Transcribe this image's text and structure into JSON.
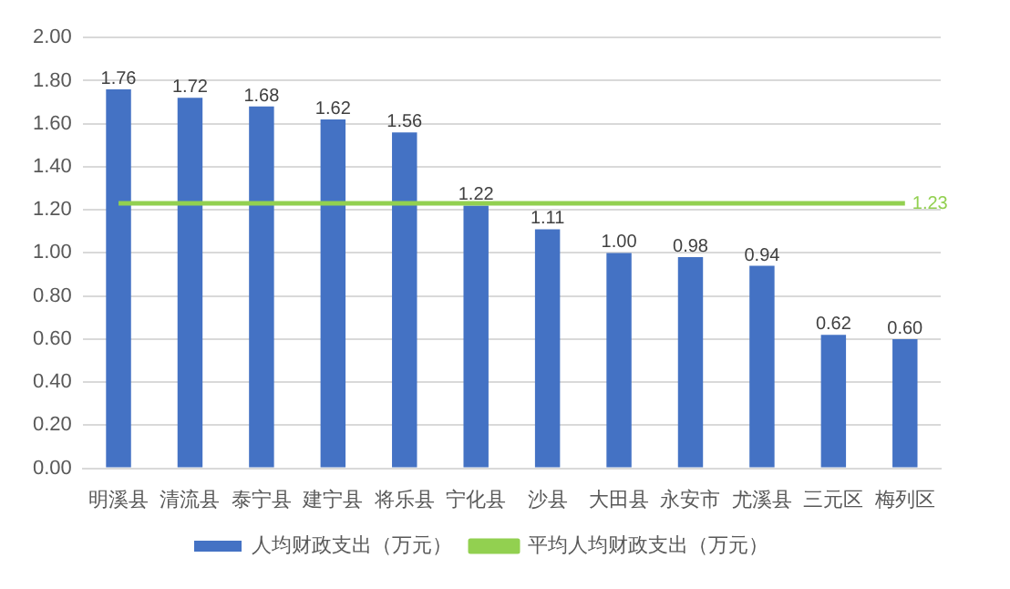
{
  "chart_data": {
    "type": "bar",
    "categories": [
      "明溪县",
      "清流县",
      "泰宁县",
      "建宁县",
      "将乐县",
      "宁化县",
      "沙县",
      "大田县",
      "永安市",
      "尤溪县",
      "三元区",
      "梅列区"
    ],
    "series": [
      {
        "name": "人均财政支出（万元）",
        "color": "#4472c4",
        "values": [
          1.76,
          1.72,
          1.68,
          1.62,
          1.56,
          1.22,
          1.11,
          1.0,
          0.98,
          0.94,
          0.62,
          0.6
        ],
        "value_labels": [
          "1.76",
          "1.72",
          "1.68",
          "1.62",
          "1.56",
          "1.22",
          "1.11",
          "1.00",
          "0.98",
          "0.94",
          "0.62",
          "0.60"
        ]
      },
      {
        "type": "line",
        "name": "平均人均财政支出（万元）",
        "color": "#92d050",
        "values": [
          1.23,
          1.23,
          1.23,
          1.23,
          1.23,
          1.23,
          1.23,
          1.23,
          1.23,
          1.23,
          1.23,
          1.23
        ],
        "value_labels": [
          null,
          null,
          null,
          null,
          null,
          null,
          null,
          null,
          null,
          null,
          null,
          "1.23"
        ]
      }
    ],
    "ylim": [
      0,
      2
    ],
    "yticks": [
      {
        "value": 0,
        "label": "0.00"
      },
      {
        "value": 0.2,
        "label": "0.20"
      },
      {
        "value": 0.4,
        "label": "0.40"
      },
      {
        "value": 0.6,
        "label": "0.60"
      },
      {
        "value": 0.8,
        "label": "0.80"
      },
      {
        "value": 1,
        "label": "1.00"
      },
      {
        "value": 1.2,
        "label": "1.20"
      },
      {
        "value": 1.4,
        "label": "1.40"
      },
      {
        "value": 1.6,
        "label": "1.60"
      },
      {
        "value": 1.8,
        "label": "1.80"
      },
      {
        "value": 2,
        "label": "2.00"
      }
    ],
    "grid": "y",
    "legend": "bottom",
    "marker": "none"
  }
}
